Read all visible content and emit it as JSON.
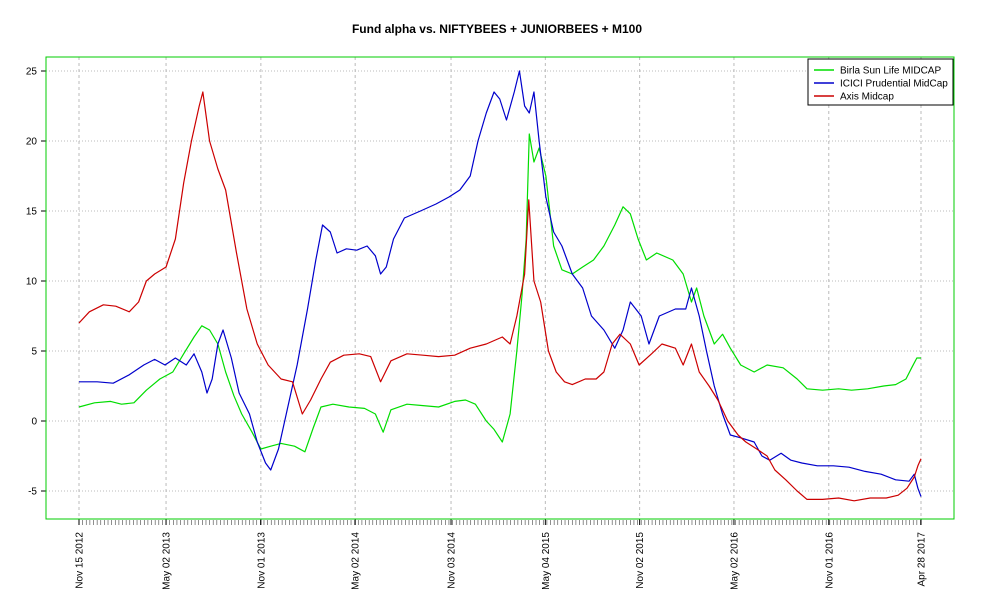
{
  "chart_data": {
    "type": "line",
    "title": "Fund alpha vs. NIFTYBEES + JUNIORBEES + M100",
    "xlabel": "",
    "ylabel": "",
    "ylim": [
      -7,
      26
    ],
    "xlim": [
      "2012-11-15",
      "2017-04-28"
    ],
    "y_ticks": [
      -5,
      0,
      5,
      10,
      15,
      20,
      25
    ],
    "x_ticks": [
      {
        "date": "2012-11-15",
        "label": "Nov 15 2012"
      },
      {
        "date": "2013-05-02",
        "label": "May 02 2013"
      },
      {
        "date": "2013-11-01",
        "label": "Nov 01 2013"
      },
      {
        "date": "2014-05-02",
        "label": "May 02 2014"
      },
      {
        "date": "2014-11-03",
        "label": "Nov 03 2014"
      },
      {
        "date": "2015-05-04",
        "label": "May 04 2015"
      },
      {
        "date": "2015-11-02",
        "label": "Nov 02 2015"
      },
      {
        "date": "2016-05-02",
        "label": "May 02 2016"
      },
      {
        "date": "2016-11-01",
        "label": "Nov 01 2016"
      },
      {
        "date": "2017-04-28",
        "label": "Apr 28 2017"
      }
    ],
    "grid": true,
    "legend_position": "top-right",
    "colors": {
      "frame": "#00cc00",
      "grid": "#bbbbbb"
    },
    "series": [
      {
        "name": "Birla Sun Life MIDCAP",
        "color": "#00dd00",
        "points": [
          [
            "2012-11-15",
            1.0
          ],
          [
            "2012-12-15",
            1.3
          ],
          [
            "2013-01-15",
            1.4
          ],
          [
            "2013-02-05",
            1.2
          ],
          [
            "2013-03-01",
            1.3
          ],
          [
            "2013-03-25",
            2.2
          ],
          [
            "2013-04-20",
            3.0
          ],
          [
            "2013-05-15",
            3.5
          ],
          [
            "2013-06-05",
            4.8
          ],
          [
            "2013-06-25",
            6.0
          ],
          [
            "2013-07-10",
            6.8
          ],
          [
            "2013-07-25",
            6.5
          ],
          [
            "2013-08-10",
            5.5
          ],
          [
            "2013-08-25",
            3.5
          ],
          [
            "2013-09-10",
            1.8
          ],
          [
            "2013-09-25",
            0.5
          ],
          [
            "2013-10-15",
            -0.8
          ],
          [
            "2013-11-01",
            -2.0
          ],
          [
            "2013-11-20",
            -1.8
          ],
          [
            "2013-12-10",
            -1.6
          ],
          [
            "2014-01-05",
            -1.8
          ],
          [
            "2014-01-25",
            -2.2
          ],
          [
            "2014-02-10",
            -0.5
          ],
          [
            "2014-02-25",
            1.0
          ],
          [
            "2014-03-20",
            1.2
          ],
          [
            "2014-04-20",
            1.0
          ],
          [
            "2014-05-20",
            0.9
          ],
          [
            "2014-06-10",
            0.5
          ],
          [
            "2014-06-25",
            -0.8
          ],
          [
            "2014-07-10",
            0.8
          ],
          [
            "2014-08-10",
            1.2
          ],
          [
            "2014-09-10",
            1.1
          ],
          [
            "2014-10-10",
            1.0
          ],
          [
            "2014-11-10",
            1.4
          ],
          [
            "2014-12-01",
            1.5
          ],
          [
            "2014-12-20",
            1.2
          ],
          [
            "2015-01-10",
            0.0
          ],
          [
            "2015-01-25",
            -0.6
          ],
          [
            "2015-02-10",
            -1.5
          ],
          [
            "2015-02-25",
            0.5
          ],
          [
            "2015-03-10",
            5.0
          ],
          [
            "2015-03-20",
            9.0
          ],
          [
            "2015-03-28",
            13.0
          ],
          [
            "2015-04-03",
            20.5
          ],
          [
            "2015-04-12",
            18.5
          ],
          [
            "2015-04-22",
            19.5
          ],
          [
            "2015-05-05",
            17.5
          ],
          [
            "2015-05-20",
            12.5
          ],
          [
            "2015-06-05",
            10.8
          ],
          [
            "2015-06-25",
            10.5
          ],
          [
            "2015-07-15",
            11.0
          ],
          [
            "2015-08-05",
            11.5
          ],
          [
            "2015-08-25",
            12.5
          ],
          [
            "2015-09-15",
            14.0
          ],
          [
            "2015-10-01",
            15.3
          ],
          [
            "2015-10-15",
            14.8
          ],
          [
            "2015-10-30",
            13.0
          ],
          [
            "2015-11-15",
            11.5
          ],
          [
            "2015-12-05",
            12.0
          ],
          [
            "2016-01-05",
            11.5
          ],
          [
            "2016-01-25",
            10.5
          ],
          [
            "2016-02-10",
            8.5
          ],
          [
            "2016-02-20",
            9.5
          ],
          [
            "2016-03-05",
            7.5
          ],
          [
            "2016-03-25",
            5.5
          ],
          [
            "2016-04-10",
            6.2
          ],
          [
            "2016-04-25",
            5.2
          ],
          [
            "2016-05-15",
            4.0
          ],
          [
            "2016-06-10",
            3.5
          ],
          [
            "2016-07-05",
            4.0
          ],
          [
            "2016-08-05",
            3.8
          ],
          [
            "2016-09-01",
            3.0
          ],
          [
            "2016-09-20",
            2.3
          ],
          [
            "2016-10-20",
            2.2
          ],
          [
            "2016-11-20",
            2.3
          ],
          [
            "2016-12-15",
            2.2
          ],
          [
            "2017-01-15",
            2.3
          ],
          [
            "2017-02-15",
            2.5
          ],
          [
            "2017-03-10",
            2.6
          ],
          [
            "2017-03-30",
            3.0
          ],
          [
            "2017-04-10",
            3.8
          ],
          [
            "2017-04-20",
            4.5
          ],
          [
            "2017-04-28",
            4.5
          ]
        ]
      },
      {
        "name": "ICICI Prudential MidCap",
        "color": "#0000cc",
        "points": [
          [
            "2012-11-15",
            2.8
          ],
          [
            "2012-12-20",
            2.8
          ],
          [
            "2013-01-20",
            2.7
          ],
          [
            "2013-02-20",
            3.3
          ],
          [
            "2013-03-20",
            4.0
          ],
          [
            "2013-04-10",
            4.4
          ],
          [
            "2013-04-30",
            4.0
          ],
          [
            "2013-05-20",
            4.5
          ],
          [
            "2013-06-10",
            4.0
          ],
          [
            "2013-06-25",
            4.8
          ],
          [
            "2013-07-10",
            3.5
          ],
          [
            "2013-07-20",
            2.0
          ],
          [
            "2013-07-30",
            3.0
          ],
          [
            "2013-08-10",
            5.5
          ],
          [
            "2013-08-20",
            6.5
          ],
          [
            "2013-09-05",
            4.5
          ],
          [
            "2013-09-20",
            2.0
          ],
          [
            "2013-10-10",
            0.5
          ],
          [
            "2013-10-25",
            -1.5
          ],
          [
            "2013-11-10",
            -3.0
          ],
          [
            "2013-11-20",
            -3.5
          ],
          [
            "2013-12-05",
            -2.0
          ],
          [
            "2013-12-20",
            0.5
          ],
          [
            "2014-01-10",
            4.0
          ],
          [
            "2014-01-30",
            8.0
          ],
          [
            "2014-02-15",
            11.5
          ],
          [
            "2014-02-28",
            14.0
          ],
          [
            "2014-03-15",
            13.5
          ],
          [
            "2014-03-28",
            12.0
          ],
          [
            "2014-04-15",
            12.3
          ],
          [
            "2014-05-05",
            12.2
          ],
          [
            "2014-05-25",
            12.5
          ],
          [
            "2014-06-10",
            11.8
          ],
          [
            "2014-06-20",
            10.5
          ],
          [
            "2014-07-01",
            11.0
          ],
          [
            "2014-07-15",
            13.0
          ],
          [
            "2014-08-05",
            14.5
          ],
          [
            "2014-09-05",
            15.0
          ],
          [
            "2014-10-05",
            15.5
          ],
          [
            "2014-10-30",
            16.0
          ],
          [
            "2014-11-20",
            16.5
          ],
          [
            "2014-12-10",
            17.5
          ],
          [
            "2014-12-25",
            20.0
          ],
          [
            "2015-01-10",
            22.0
          ],
          [
            "2015-01-25",
            23.5
          ],
          [
            "2015-02-05",
            23.0
          ],
          [
            "2015-02-18",
            21.5
          ],
          [
            "2015-03-05",
            23.5
          ],
          [
            "2015-03-15",
            25.0
          ],
          [
            "2015-03-25",
            22.5
          ],
          [
            "2015-04-03",
            22.0
          ],
          [
            "2015-04-12",
            23.5
          ],
          [
            "2015-04-22",
            20.0
          ],
          [
            "2015-05-05",
            16.0
          ],
          [
            "2015-05-20",
            13.5
          ],
          [
            "2015-06-05",
            12.5
          ],
          [
            "2015-06-25",
            10.5
          ],
          [
            "2015-07-15",
            9.5
          ],
          [
            "2015-08-01",
            7.5
          ],
          [
            "2015-08-25",
            6.5
          ],
          [
            "2015-09-15",
            5.2
          ],
          [
            "2015-10-01",
            6.5
          ],
          [
            "2015-10-15",
            8.5
          ],
          [
            "2015-11-05",
            7.5
          ],
          [
            "2015-11-20",
            5.5
          ],
          [
            "2015-12-10",
            7.5
          ],
          [
            "2016-01-10",
            8.0
          ],
          [
            "2016-01-30",
            8.0
          ],
          [
            "2016-02-10",
            9.5
          ],
          [
            "2016-02-25",
            7.5
          ],
          [
            "2016-03-10",
            5.0
          ],
          [
            "2016-03-25",
            2.5
          ],
          [
            "2016-04-10",
            0.5
          ],
          [
            "2016-04-25",
            -1.0
          ],
          [
            "2016-05-15",
            -1.2
          ],
          [
            "2016-06-10",
            -1.5
          ],
          [
            "2016-06-25",
            -2.5
          ],
          [
            "2016-07-10",
            -2.8
          ],
          [
            "2016-08-01",
            -2.3
          ],
          [
            "2016-08-20",
            -2.8
          ],
          [
            "2016-09-10",
            -3.0
          ],
          [
            "2016-10-10",
            -3.2
          ],
          [
            "2016-11-10",
            -3.2
          ],
          [
            "2016-12-10",
            -3.3
          ],
          [
            "2017-01-10",
            -3.6
          ],
          [
            "2017-02-10",
            -3.8
          ],
          [
            "2017-03-10",
            -4.2
          ],
          [
            "2017-04-05",
            -4.3
          ],
          [
            "2017-04-15",
            -3.8
          ],
          [
            "2017-04-22",
            -4.8
          ],
          [
            "2017-04-28",
            -5.4
          ]
        ]
      },
      {
        "name": "Axis Midcap",
        "color": "#cc0000",
        "points": [
          [
            "2012-11-15",
            7.0
          ],
          [
            "2012-12-05",
            7.8
          ],
          [
            "2013-01-01",
            8.3
          ],
          [
            "2013-01-25",
            8.2
          ],
          [
            "2013-02-20",
            7.8
          ],
          [
            "2013-03-10",
            8.5
          ],
          [
            "2013-03-25",
            10.0
          ],
          [
            "2013-04-10",
            10.5
          ],
          [
            "2013-05-02",
            11.0
          ],
          [
            "2013-05-20",
            13.0
          ],
          [
            "2013-06-05",
            17.0
          ],
          [
            "2013-06-20",
            20.0
          ],
          [
            "2013-07-05",
            22.5
          ],
          [
            "2013-07-12",
            23.5
          ],
          [
            "2013-07-25",
            20.0
          ],
          [
            "2013-08-10",
            18.0
          ],
          [
            "2013-08-25",
            16.5
          ],
          [
            "2013-09-15",
            12.0
          ],
          [
            "2013-10-05",
            8.0
          ],
          [
            "2013-10-25",
            5.5
          ],
          [
            "2013-11-15",
            4.0
          ],
          [
            "2013-12-10",
            3.0
          ],
          [
            "2014-01-01",
            2.8
          ],
          [
            "2014-01-20",
            0.5
          ],
          [
            "2014-02-05",
            1.5
          ],
          [
            "2014-02-25",
            3.0
          ],
          [
            "2014-03-15",
            4.2
          ],
          [
            "2014-04-10",
            4.7
          ],
          [
            "2014-05-10",
            4.8
          ],
          [
            "2014-06-01",
            4.6
          ],
          [
            "2014-06-20",
            2.8
          ],
          [
            "2014-07-10",
            4.3
          ],
          [
            "2014-08-10",
            4.8
          ],
          [
            "2014-09-10",
            4.7
          ],
          [
            "2014-10-10",
            4.6
          ],
          [
            "2014-11-10",
            4.7
          ],
          [
            "2014-12-10",
            5.2
          ],
          [
            "2015-01-10",
            5.5
          ],
          [
            "2015-02-10",
            6.0
          ],
          [
            "2015-02-25",
            5.5
          ],
          [
            "2015-03-10",
            7.5
          ],
          [
            "2015-03-25",
            10.5
          ],
          [
            "2015-04-02",
            15.8
          ],
          [
            "2015-04-12",
            10.0
          ],
          [
            "2015-04-25",
            8.5
          ],
          [
            "2015-05-10",
            5.0
          ],
          [
            "2015-05-25",
            3.5
          ],
          [
            "2015-06-10",
            2.8
          ],
          [
            "2015-06-25",
            2.6
          ],
          [
            "2015-07-20",
            3.0
          ],
          [
            "2015-08-10",
            3.0
          ],
          [
            "2015-08-25",
            3.5
          ],
          [
            "2015-09-10",
            5.5
          ],
          [
            "2015-09-25",
            6.2
          ],
          [
            "2015-10-15",
            5.5
          ],
          [
            "2015-11-01",
            4.0
          ],
          [
            "2015-11-25",
            4.8
          ],
          [
            "2015-12-15",
            5.5
          ],
          [
            "2016-01-10",
            5.2
          ],
          [
            "2016-01-25",
            4.0
          ],
          [
            "2016-02-10",
            5.5
          ],
          [
            "2016-02-25",
            3.5
          ],
          [
            "2016-03-15",
            2.5
          ],
          [
            "2016-04-01",
            1.5
          ],
          [
            "2016-04-20",
            0.0
          ],
          [
            "2016-05-10",
            -1.0
          ],
          [
            "2016-05-25",
            -1.5
          ],
          [
            "2016-06-15",
            -2.0
          ],
          [
            "2016-07-05",
            -2.5
          ],
          [
            "2016-07-20",
            -3.5
          ],
          [
            "2016-08-10",
            -4.2
          ],
          [
            "2016-09-01",
            -5.0
          ],
          [
            "2016-09-20",
            -5.6
          ],
          [
            "2016-10-20",
            -5.6
          ],
          [
            "2016-11-20",
            -5.5
          ],
          [
            "2016-12-20",
            -5.7
          ],
          [
            "2017-01-20",
            -5.5
          ],
          [
            "2017-02-20",
            -5.5
          ],
          [
            "2017-03-15",
            -5.3
          ],
          [
            "2017-04-01",
            -4.8
          ],
          [
            "2017-04-15",
            -4.0
          ],
          [
            "2017-04-22",
            -3.2
          ],
          [
            "2017-04-28",
            -2.7
          ]
        ]
      }
    ]
  }
}
